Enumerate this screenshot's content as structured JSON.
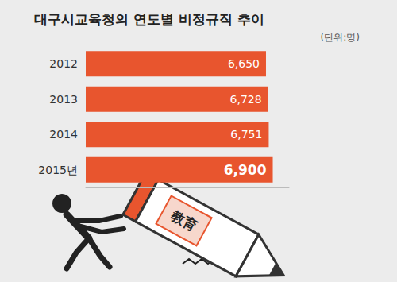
{
  "chart_data": {
    "type": "bar",
    "title": "대구시교육청의 연도별 비정규직 추이",
    "subtitle": "(단위:명)",
    "categories": [
      "2012",
      "2013",
      "2014",
      "2015년"
    ],
    "values": [
      6650,
      6728,
      6751,
      6900
    ],
    "value_labels": [
      "6,650",
      "6,728",
      "6,751",
      "6,900"
    ],
    "color": "#e8552e",
    "orientation": "horizontal",
    "xlim": [
      0,
      7500
    ],
    "data_labels": true,
    "grid": false,
    "tick_labels": "y",
    "annotations": [
      "教育"
    ]
  }
}
